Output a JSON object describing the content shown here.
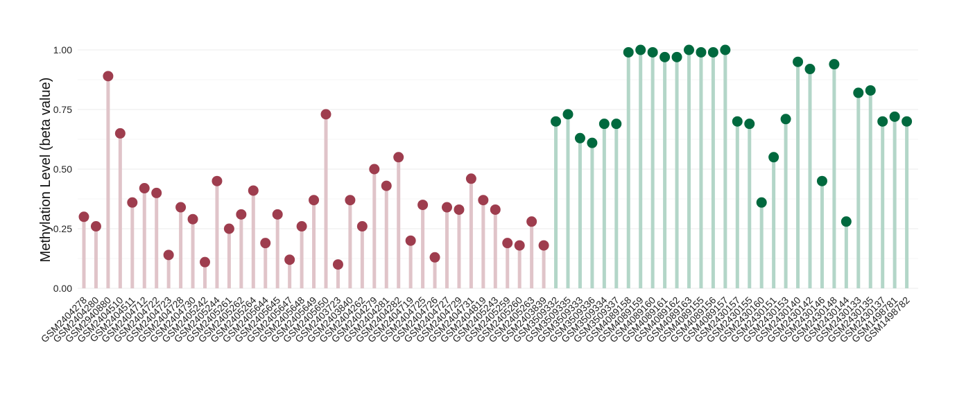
{
  "chart_data": {
    "type": "lollipop",
    "ylabel": "Methylation Level (beta value)",
    "xlabel": "",
    "ylim": [
      0,
      1.0
    ],
    "yticks": [
      0.0,
      0.25,
      0.5,
      0.75,
      1.0
    ],
    "ytick_labels": [
      "0.00",
      "0.25",
      "0.50",
      "0.75",
      "1.00"
    ],
    "grid": true,
    "legend": "none",
    "colors": {
      "group_a_dot": "#9E3D4E",
      "group_a_stem": "#E0C4C9",
      "group_b_dot": "#00693E",
      "group_b_stem": "#B3D6C8"
    },
    "points": [
      {
        "label": "GSM2404278",
        "value": 0.3,
        "group": "a"
      },
      {
        "label": "GSM2404280",
        "value": 0.26,
        "group": "a"
      },
      {
        "label": "GSM2940880",
        "value": 0.89,
        "group": "a"
      },
      {
        "label": "GSM2404510",
        "value": 0.65,
        "group": "a"
      },
      {
        "label": "GSM2404511",
        "value": 0.36,
        "group": "a"
      },
      {
        "label": "GSM2404712",
        "value": 0.42,
        "group": "a"
      },
      {
        "label": "GSM2404722",
        "value": 0.4,
        "group": "a"
      },
      {
        "label": "GSM2404723",
        "value": 0.14,
        "group": "a"
      },
      {
        "label": "GSM2404728",
        "value": 0.34,
        "group": "a"
      },
      {
        "label": "GSM2404730",
        "value": 0.29,
        "group": "a"
      },
      {
        "label": "GSM2405242",
        "value": 0.11,
        "group": "a"
      },
      {
        "label": "GSM2405244",
        "value": 0.45,
        "group": "a"
      },
      {
        "label": "GSM2405261",
        "value": 0.25,
        "group": "a"
      },
      {
        "label": "GSM2405262",
        "value": 0.31,
        "group": "a"
      },
      {
        "label": "GSM2405264",
        "value": 0.41,
        "group": "a"
      },
      {
        "label": "GSM2405644",
        "value": 0.19,
        "group": "a"
      },
      {
        "label": "GSM2405645",
        "value": 0.31,
        "group": "a"
      },
      {
        "label": "GSM2405647",
        "value": 0.12,
        "group": "a"
      },
      {
        "label": "GSM2405648",
        "value": 0.26,
        "group": "a"
      },
      {
        "label": "GSM2405649",
        "value": 0.37,
        "group": "a"
      },
      {
        "label": "GSM2405650",
        "value": 0.73,
        "group": "a"
      },
      {
        "label": "GSM2403723",
        "value": 0.1,
        "group": "a"
      },
      {
        "label": "GSM2403840",
        "value": 0.37,
        "group": "a"
      },
      {
        "label": "GSM2404262",
        "value": 0.26,
        "group": "a"
      },
      {
        "label": "GSM2404279",
        "value": 0.5,
        "group": "a"
      },
      {
        "label": "GSM2404281",
        "value": 0.43,
        "group": "a"
      },
      {
        "label": "GSM2404282",
        "value": 0.55,
        "group": "a"
      },
      {
        "label": "GSM2404719",
        "value": 0.2,
        "group": "a"
      },
      {
        "label": "GSM2404725",
        "value": 0.35,
        "group": "a"
      },
      {
        "label": "GSM2404726",
        "value": 0.13,
        "group": "a"
      },
      {
        "label": "GSM2404727",
        "value": 0.34,
        "group": "a"
      },
      {
        "label": "GSM2404729",
        "value": 0.33,
        "group": "a"
      },
      {
        "label": "GSM2404731",
        "value": 0.46,
        "group": "a"
      },
      {
        "label": "GSM2404819",
        "value": 0.37,
        "group": "a"
      },
      {
        "label": "GSM2405243",
        "value": 0.33,
        "group": "a"
      },
      {
        "label": "GSM2405259",
        "value": 0.19,
        "group": "a"
      },
      {
        "label": "GSM2405260",
        "value": 0.18,
        "group": "a"
      },
      {
        "label": "GSM2405263",
        "value": 0.28,
        "group": "a"
      },
      {
        "label": "GSM2403839",
        "value": 0.18,
        "group": "a"
      },
      {
        "label": "GSM3509332",
        "value": 0.7,
        "group": "b"
      },
      {
        "label": "GSM3509335",
        "value": 0.73,
        "group": "b"
      },
      {
        "label": "GSM3509333",
        "value": 0.63,
        "group": "b"
      },
      {
        "label": "GSM3509336",
        "value": 0.61,
        "group": "b"
      },
      {
        "label": "GSM3509334",
        "value": 0.69,
        "group": "b"
      },
      {
        "label": "GSM3509337",
        "value": 0.69,
        "group": "b"
      },
      {
        "label": "GSM4089158",
        "value": 0.99,
        "group": "b"
      },
      {
        "label": "GSM4089159",
        "value": 1.0,
        "group": "b"
      },
      {
        "label": "GSM4089160",
        "value": 0.99,
        "group": "b"
      },
      {
        "label": "GSM4089161",
        "value": 0.97,
        "group": "b"
      },
      {
        "label": "GSM4089162",
        "value": 0.97,
        "group": "b"
      },
      {
        "label": "GSM4089163",
        "value": 1.0,
        "group": "b"
      },
      {
        "label": "GSM4089155",
        "value": 0.99,
        "group": "b"
      },
      {
        "label": "GSM4089156",
        "value": 0.99,
        "group": "b"
      },
      {
        "label": "GSM4089157",
        "value": 1.0,
        "group": "b"
      },
      {
        "label": "GSM2430157",
        "value": 0.7,
        "group": "b"
      },
      {
        "label": "GSM2430155",
        "value": 0.69,
        "group": "b"
      },
      {
        "label": "GSM2430160",
        "value": 0.36,
        "group": "b"
      },
      {
        "label": "GSM2430151",
        "value": 0.55,
        "group": "b"
      },
      {
        "label": "GSM2430153",
        "value": 0.71,
        "group": "b"
      },
      {
        "label": "GSM2430140",
        "value": 0.95,
        "group": "b"
      },
      {
        "label": "GSM2430142",
        "value": 0.92,
        "group": "b"
      },
      {
        "label": "GSM2430146",
        "value": 0.45,
        "group": "b"
      },
      {
        "label": "GSM2430148",
        "value": 0.94,
        "group": "b"
      },
      {
        "label": "GSM2430144",
        "value": 0.28,
        "group": "b"
      },
      {
        "label": "GSM2430133",
        "value": 0.82,
        "group": "b"
      },
      {
        "label": "GSM2430135",
        "value": 0.83,
        "group": "b"
      },
      {
        "label": "GSM2430137",
        "value": 0.7,
        "group": "b"
      },
      {
        "label": "GSM1498781",
        "value": 0.72,
        "group": "b"
      },
      {
        "label": "GSM1498782",
        "value": 0.7,
        "group": "b"
      }
    ]
  }
}
